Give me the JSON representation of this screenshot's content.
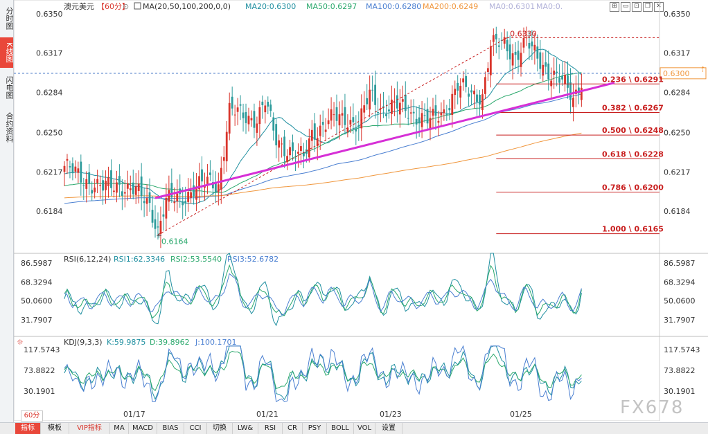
{
  "sidebar": {
    "tabs": [
      {
        "label": "分时图",
        "active": false
      },
      {
        "label": "K线图",
        "active": true
      },
      {
        "label": "闪电图",
        "active": false
      },
      {
        "label": "合约资料",
        "active": false
      }
    ]
  },
  "header": {
    "symbol": "澳元美元",
    "period": "【60分】",
    "ma_label": "MA(20,50,100,200,0,0)",
    "ma20": "MA20:0.6300",
    "ma50": "MA50:0.6297",
    "ma100": "MA100:0.6280",
    "ma200": "MA200:0.6249",
    "ma0a": "MA0:0.6301",
    "ma0b": "MA0:0."
  },
  "colors": {
    "up": "#d9342b",
    "down": "#2d9b9b",
    "ma20": "#1f8fa0",
    "ma50": "#2aa86c",
    "ma100": "#4a7fd1",
    "ma200": "#f0963c",
    "trend": "#d62fd6",
    "fib": "#c81e1e"
  },
  "price_axis": [
    "0.6350",
    "0.6317",
    "0.6284",
    "0.6250",
    "0.6217",
    "0.6184"
  ],
  "current_price": "0.6300",
  "annotations": {
    "high": "0.6330",
    "low": "0.6164"
  },
  "fib_levels": [
    {
      "label": "0.236 \\ 0.6291",
      "value": 0.6291
    },
    {
      "label": "0.382 \\ 0.6267",
      "value": 0.6267
    },
    {
      "label": "0.500 \\ 0.6248",
      "value": 0.6248
    },
    {
      "label": "0.618 \\ 0.6228",
      "value": 0.6228
    },
    {
      "label": "0.786 \\ 0.6200",
      "value": 0.62
    },
    {
      "label": "1.000 \\ 0.6165",
      "value": 0.6165
    }
  ],
  "rsi": {
    "label": "RSI(6,12,24)",
    "rsi1": "RSI1:62.3346",
    "rsi2": "RSI2:53.5540",
    "rsi3": "RSI3:52.6782",
    "axis": [
      "86.5987",
      "68.3294",
      "50.0600",
      "31.7907"
    ]
  },
  "kdj": {
    "label": "KDJ(9,3,3)",
    "k": "K:59.9875",
    "d": "D:39.8962",
    "j": "J:100.1701",
    "axis": [
      "117.5743",
      "73.8822",
      "30.1901"
    ]
  },
  "x_labels": [
    "01/17",
    "01/21",
    "01/23",
    "01/25"
  ],
  "period_select": "60分",
  "toolbar": [
    "指标",
    "模板",
    "VIP指标",
    "MA",
    "MACD",
    "BIAS",
    "CCI",
    "切换",
    "LW&",
    "RSI",
    "CR",
    "PSY",
    "BOLL",
    "VOL",
    "设置"
  ],
  "logo": "FX678",
  "chart_data": {
    "type": "candlestick",
    "title": "澳元美元 60分",
    "y_range": [
      0.6165,
      0.6355
    ],
    "waypoints": [
      [
        0,
        0.6222
      ],
      [
        6,
        0.6212
      ],
      [
        14,
        0.6203
      ],
      [
        20,
        0.6207
      ],
      [
        26,
        0.62
      ],
      [
        31,
        0.619
      ],
      [
        34,
        0.6168
      ],
      [
        37,
        0.6192
      ],
      [
        43,
        0.6196
      ],
      [
        48,
        0.6204
      ],
      [
        53,
        0.6209
      ],
      [
        56,
        0.6206
      ],
      [
        60,
        0.6268
      ],
      [
        66,
        0.6264
      ],
      [
        70,
        0.6262
      ],
      [
        73,
        0.6275
      ],
      [
        77,
        0.6244
      ],
      [
        83,
        0.6233
      ],
      [
        87,
        0.6228
      ],
      [
        90,
        0.625
      ],
      [
        94,
        0.6256
      ],
      [
        98,
        0.6262
      ],
      [
        103,
        0.6262
      ],
      [
        107,
        0.6256
      ],
      [
        111,
        0.6282
      ],
      [
        115,
        0.6271
      ],
      [
        121,
        0.6272
      ],
      [
        127,
        0.6266
      ],
      [
        133,
        0.6259
      ],
      [
        138,
        0.6268
      ],
      [
        143,
        0.6289
      ],
      [
        148,
        0.6282
      ],
      [
        152,
        0.6282
      ],
      [
        155,
        0.6323
      ],
      [
        160,
        0.6325
      ],
      [
        164,
        0.6315
      ],
      [
        168,
        0.6325
      ],
      [
        173,
        0.6311
      ],
      [
        177,
        0.6299
      ],
      [
        182,
        0.629
      ],
      [
        185,
        0.628
      ],
      [
        188,
        0.6295
      ]
    ],
    "bar_count": 189,
    "trendline": {
      "from": [
        33,
        0.6195
      ],
      "to": [
        200,
        0.6292
      ]
    }
  }
}
